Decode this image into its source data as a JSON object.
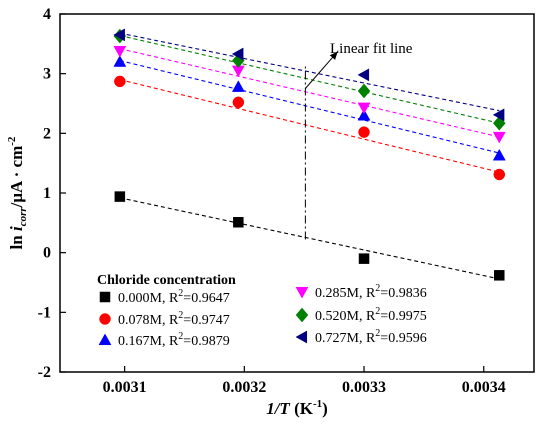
{
  "chart_data": {
    "type": "scatter",
    "xlabel": {
      "main": "1/T",
      "unit_open": " (K",
      "unit_sup": "-1",
      "unit_close": ")"
    },
    "ylabel": {
      "main": "ln ",
      "italic": "i",
      "sub": "corr",
      "mid": "/μA · cm",
      "sup": "-2"
    },
    "xlim": [
      0.003046,
      0.003442
    ],
    "ylim": [
      -2,
      4
    ],
    "x_ticks": [
      "0.0031",
      "0.0032",
      "0.0033",
      "0.0034"
    ],
    "y_ticks": [
      "-2",
      "-1",
      "0",
      "1",
      "2",
      "3",
      "4"
    ],
    "x": [
      0.003096,
      0.003195,
      0.0033,
      0.003413
    ],
    "legend_title": "Chloride concentration",
    "legend_placement": "bottom-left",
    "series": [
      {
        "name": "0.000M, R",
        "sup": "2",
        "r2": "=0.9647",
        "marker": "square",
        "color": "#000000",
        "values": [
          0.94,
          0.51,
          -0.1,
          -0.38
        ],
        "fit": [
          0.92,
          -0.44
        ]
      },
      {
        "name": "0.078M, R",
        "sup": "2",
        "r2": "=0.9747",
        "marker": "circle",
        "color": "#ff0000",
        "values": [
          2.87,
          2.52,
          2.02,
          1.31
        ],
        "fit": [
          2.9,
          1.35
        ]
      },
      {
        "name": "0.167M, R",
        "sup": "2",
        "r2": "=0.9879",
        "marker": "triangle-up",
        "color": "#0000ff",
        "values": [
          3.2,
          2.78,
          2.3,
          1.63
        ],
        "fit": [
          3.22,
          1.67
        ]
      },
      {
        "name": "0.285M, R",
        "sup": "2",
        "r2": "=0.9836",
        "marker": "triangle-down",
        "color": "#ff00ff",
        "values": [
          3.38,
          3.05,
          2.43,
          1.94
        ],
        "fit": [
          3.42,
          1.94
        ]
      },
      {
        "name": "0.520M, R",
        "sup": "2",
        "r2": "=0.9975",
        "marker": "diamond",
        "color": "#008000",
        "values": [
          3.63,
          3.22,
          2.71,
          2.17
        ],
        "fit": [
          3.64,
          2.17
        ]
      },
      {
        "name": "0.727M, R",
        "sup": "2",
        "r2": "=0.9596",
        "marker": "triangle-left",
        "color": "#000080",
        "values": [
          3.65,
          3.33,
          2.98,
          2.31
        ],
        "fit": [
          3.68,
          2.38
        ]
      }
    ],
    "annotation": {
      "text": "Linear fit line",
      "x": 0.003251,
      "y_bottom": 0.22,
      "y_top": 3.12,
      "arrow_x": 0.003278,
      "arrow_y": 3.37
    }
  }
}
